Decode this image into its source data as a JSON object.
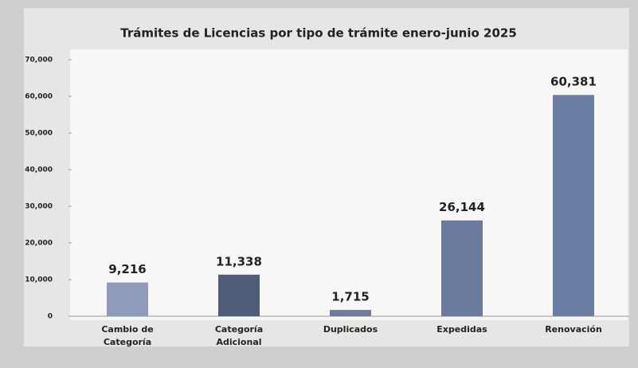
{
  "chart_data": {
    "type": "bar",
    "title": "Trámites de Licencias por tipo de trámite enero-junio 2025",
    "categories": [
      "Cambio de Categoría",
      "Categoría Adicional",
      "Duplicados",
      "Expedidas",
      "Renovación"
    ],
    "values": [
      9216,
      11338,
      1715,
      26144,
      60381
    ],
    "value_labels": [
      "9,216",
      "11,338",
      "1,715",
      "26,144",
      "60,381"
    ],
    "colors": [
      "#8d9cb8",
      "#4f5d78",
      "#6d7c9a",
      "#6a7b9f",
      "#6a7ea4"
    ],
    "ylim": [
      0,
      70000
    ],
    "yticks": [
      0,
      {
        "value": 10000,
        "label": "10,000"
      },
      {
        "value": 20000,
        "label": "20,000"
      },
      {
        "value": 30000,
        "label": "30,000"
      },
      {
        "value": 40000,
        "label": "40,000"
      },
      {
        "value": 50000,
        "label": "50,000"
      },
      {
        "value": 60000,
        "label": "60,000"
      },
      {
        "value": 70000,
        "label": "70,000"
      }
    ],
    "grid": false
  }
}
